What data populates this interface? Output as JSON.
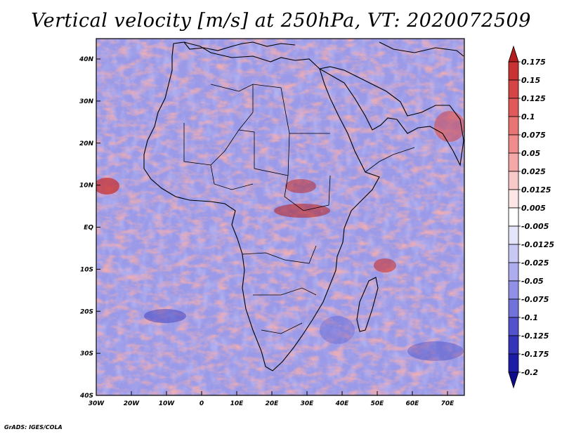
{
  "title": "Vertical velocity [m/s] at 250hPa, VT: 2020072509",
  "footer": "GrADS: IGES/COLA",
  "map": {
    "lat_labels": [
      "40N",
      "30N",
      "20N",
      "10N",
      "EQ",
      "10S",
      "20S",
      "30S",
      "40S"
    ],
    "lon_labels": [
      "30W",
      "20W",
      "10W",
      "0",
      "10E",
      "20E",
      "30E",
      "40E",
      "50E",
      "60E",
      "70E"
    ]
  },
  "colorbar": {
    "labels": [
      "0.175",
      "0.15",
      "0.125",
      "0.1",
      "0.075",
      "0.05",
      "0.025",
      "0.0125",
      "0.005",
      "-0.005",
      "-0.0125",
      "-0.025",
      "-0.05",
      "-0.075",
      "-0.1",
      "-0.125",
      "-0.175",
      "-0.2"
    ],
    "colors": [
      "#b51c1c",
      "#c83232",
      "#d64545",
      "#e05a5a",
      "#e87474",
      "#f08c8c",
      "#f5a8a8",
      "#f9c8c8",
      "#fde6e6",
      "#ffffff",
      "#e4e4fb",
      "#c8c8f5",
      "#acacee",
      "#9090e6",
      "#7272dc",
      "#5252cc",
      "#3434b8",
      "#1c1ca6",
      "#0d0d8c"
    ]
  }
}
